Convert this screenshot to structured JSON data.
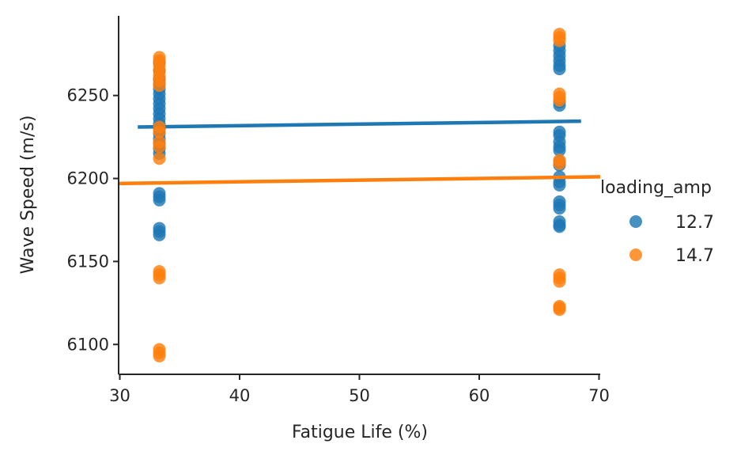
{
  "chart_data": {
    "type": "scatter",
    "xlabel": "Fatigue Life (%)",
    "ylabel": "Wave Speed (m/s)",
    "xlim": [
      29.9,
      70.1
    ],
    "ylim": [
      6082,
      6298
    ],
    "xticks": [
      30,
      40,
      50,
      60,
      70
    ],
    "yticks": [
      6100,
      6150,
      6200,
      6250
    ],
    "grid": false,
    "legend": {
      "title": "loading_amp",
      "placement": "right"
    },
    "series": [
      {
        "name": "12.7",
        "color": "#1f77b4",
        "x": [
          33.3,
          33.3,
          33.3,
          33.3,
          33.3,
          33.3,
          33.3,
          33.3,
          33.3,
          33.3,
          33.3,
          33.3,
          33.3,
          33.3,
          33.3,
          33.3,
          33.3,
          33.3,
          33.3,
          33.3,
          33.3,
          33.3,
          33.3,
          33.3,
          66.7,
          66.7,
          66.7,
          66.7,
          66.7,
          66.7,
          66.7,
          66.7,
          66.7,
          66.7,
          66.7,
          66.7,
          66.7,
          66.7,
          66.7,
          66.7,
          66.7,
          66.7,
          66.7,
          66.7,
          66.7,
          66.7,
          66.7,
          66.7
        ],
        "y": [
          6270,
          6265,
          6260,
          6257,
          6254,
          6251,
          6248,
          6245,
          6242,
          6239,
          6236,
          6233,
          6230,
          6227,
          6224,
          6221,
          6218,
          6215,
          6191,
          6189,
          6187,
          6170,
          6168,
          6166,
          6280,
          6277,
          6274,
          6271,
          6268,
          6266,
          6246,
          6244,
          6228,
          6226,
          6222,
          6219,
          6217,
          6210,
          6208,
          6201,
          6198,
          6196,
          6186,
          6184,
          6182,
          6174,
          6172,
          6171
        ],
        "trend": {
          "x": [
            31.5,
            68.5
          ],
          "y": [
            6231,
            6234.5
          ]
        }
      },
      {
        "name": "14.7",
        "color": "#ff7f0e",
        "x": [
          33.3,
          33.3,
          33.3,
          33.3,
          33.3,
          33.3,
          33.3,
          33.3,
          33.3,
          33.3,
          33.3,
          33.3,
          33.3,
          33.3,
          33.3,
          33.3,
          33.3,
          33.3,
          66.7,
          66.7,
          66.7,
          66.7,
          66.7,
          66.7,
          66.7,
          66.7,
          66.7,
          66.7,
          66.7,
          66.7,
          66.7,
          66.7
        ],
        "y": [
          6273,
          6271,
          6268,
          6265,
          6262,
          6259,
          6256,
          6231,
          6228,
          6222,
          6219,
          6212,
          6144,
          6142,
          6140,
          6097,
          6095,
          6093,
          6287,
          6285,
          6283,
          6251,
          6249,
          6247,
          6211,
          6209,
          6142,
          6140,
          6138,
          6123,
          6122,
          6121
        ],
        "trend": {
          "x": [
            29.9,
            70.1
          ],
          "y": [
            6197,
            6201
          ]
        }
      }
    ]
  }
}
